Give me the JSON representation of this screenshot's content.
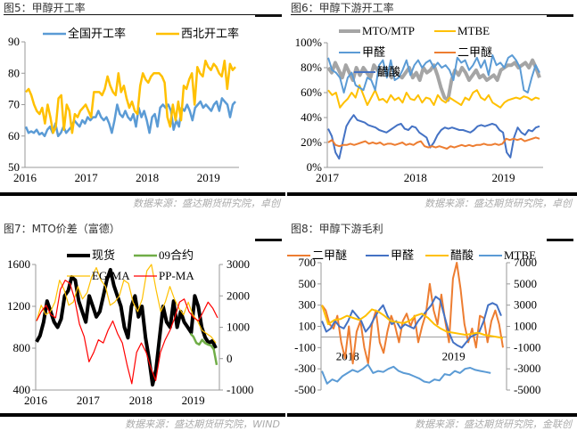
{
  "source_line_1": "数据来源：盛达期货研究院，卓创",
  "source_line_2": "数据来源：盛达期货研究院，卓创",
  "source_line_3": "数据来源：盛达期货研究院，WIND",
  "source_line_4": "数据来源：盛达期货研究院，金联创",
  "chart_data": [
    {
      "id": "fig5",
      "type": "line",
      "title": "图5：甲醇开工率",
      "xlabel": "",
      "ylabel": "",
      "x_ticks": [
        "2016",
        "2017",
        "2018",
        "2019"
      ],
      "x_range": [
        2016.0,
        2019.5
      ],
      "y_ticks": [
        50,
        60,
        70,
        80,
        90
      ],
      "ylim": [
        50,
        90
      ],
      "grid": false,
      "legend": "top",
      "series": [
        {
          "name": "全国开工率",
          "color": "#5B9BD5",
          "values": [
            63,
            61,
            61.5,
            61,
            62,
            60.5,
            61,
            60,
            62,
            63,
            61,
            64,
            60,
            61,
            63,
            61,
            62,
            63,
            65,
            64,
            63,
            65,
            64,
            66,
            65,
            66,
            66,
            68,
            66,
            65,
            66,
            64,
            61,
            65,
            70,
            67,
            66,
            68,
            66,
            65,
            67,
            63,
            69,
            66,
            68,
            65,
            61,
            66,
            67,
            63,
            69,
            70,
            69,
            70,
            68,
            62,
            65,
            63,
            69,
            68,
            70,
            68,
            65,
            69,
            70,
            71,
            69,
            70,
            69,
            68,
            70,
            71,
            68,
            72,
            71,
            70,
            66,
            70,
            71
          ]
        },
        {
          "name": "西北开工率",
          "color": "#FFC000",
          "values": [
            74,
            75,
            73,
            70,
            68,
            67,
            69,
            64,
            70,
            66,
            61,
            63,
            72,
            73,
            62,
            70,
            68,
            61,
            67,
            66,
            68,
            69,
            70,
            68,
            66,
            74,
            74,
            74,
            73,
            75,
            79,
            76,
            74,
            73,
            80,
            74,
            76,
            72,
            69,
            71,
            68,
            67,
            76,
            80,
            78,
            77,
            79,
            80,
            80,
            80,
            79,
            77,
            66,
            63,
            70,
            65,
            71,
            65,
            76,
            75,
            78,
            80,
            70,
            82,
            80,
            79,
            84,
            82,
            81,
            83,
            82,
            80,
            79,
            84,
            75,
            83,
            81,
            82
          ]
        }
      ]
    },
    {
      "id": "fig6",
      "type": "line",
      "title": "图6：甲醇下游开工率",
      "xlabel": "",
      "ylabel": "",
      "x_ticks": [
        "2017",
        "2018",
        "2019"
      ],
      "x_range": [
        2017.0,
        2019.45
      ],
      "y_ticks": [
        "0%",
        "20%",
        "40%",
        "60%",
        "80%",
        "100%"
      ],
      "ylim": [
        0,
        100
      ],
      "grid": false,
      "legend": "top",
      "series": [
        {
          "name": "MTO/MTP",
          "color": "#A5A5A5",
          "values": [
            80,
            76,
            84,
            78,
            72,
            82,
            76,
            70,
            80,
            74,
            80,
            76,
            72,
            82,
            78,
            74,
            80,
            76,
            72,
            78,
            74,
            72,
            76,
            80,
            72,
            76,
            70,
            80,
            76,
            78,
            82,
            74,
            64,
            56,
            54,
            70,
            78,
            74,
            80,
            76,
            70,
            74,
            78,
            72,
            74,
            70,
            72,
            74,
            70,
            78,
            80,
            82,
            82,
            84,
            80,
            82,
            84,
            80,
            86,
            80,
            72
          ]
        },
        {
          "name": "甲醛",
          "color": "#5B9BD5",
          "values": [
            88,
            78,
            76,
            72,
            60,
            72,
            76,
            66,
            64,
            62,
            72,
            70,
            62,
            82,
            86,
            72,
            86,
            70,
            72,
            78,
            86,
            74,
            82,
            86,
            80,
            84,
            86,
            80,
            84,
            80,
            82,
            78,
            70,
            88,
            84,
            86,
            78,
            82,
            88,
            80,
            86,
            74,
            90,
            82,
            84,
            80,
            88,
            90,
            86,
            80,
            62,
            60,
            72,
            82,
            76
          ]
        },
        {
          "name": "二甲醚",
          "color": "#ED7D31",
          "values": [
            20,
            22,
            18,
            17,
            18,
            18,
            19,
            18,
            19,
            20,
            21,
            19,
            20,
            19,
            20,
            18,
            19,
            19,
            18,
            19,
            20,
            18,
            19,
            18,
            20,
            21,
            17,
            16,
            17,
            16,
            17,
            16,
            15,
            17,
            16,
            17,
            18,
            17,
            18,
            17,
            18,
            18,
            19,
            18,
            18,
            19,
            18,
            19,
            23,
            22,
            23,
            22,
            23,
            21,
            22,
            23,
            24,
            23
          ]
        },
        {
          "name": "MTBE",
          "color": "#FFC000",
          "values": [
            62,
            58,
            60,
            48,
            52,
            55,
            60,
            56,
            66,
            58,
            50,
            56,
            62,
            54,
            55,
            52,
            58,
            54,
            56,
            52,
            60,
            55,
            54,
            58,
            52,
            56,
            55,
            50,
            58,
            54,
            52,
            56,
            54,
            52,
            50,
            56,
            54,
            60,
            62,
            56,
            54,
            58,
            52,
            50,
            48,
            52,
            54,
            55,
            56,
            55,
            57,
            56,
            54,
            56,
            55
          ]
        },
        {
          "name": "醋酸",
          "color": "#4472C4",
          "values": [
            31,
            25,
            12,
            7,
            20,
            33,
            38,
            42,
            38,
            37,
            36,
            34,
            33,
            32,
            30,
            29,
            28,
            30,
            32,
            34,
            35,
            31,
            30,
            33,
            32,
            28,
            26,
            24,
            16,
            20,
            26,
            30,
            32,
            31,
            32,
            31,
            30,
            30,
            29,
            28,
            30,
            33,
            34,
            33,
            34,
            35,
            34,
            30,
            28,
            12,
            8,
            24,
            32,
            28,
            26,
            30,
            29,
            32,
            33
          ]
        }
      ]
    },
    {
      "id": "fig7",
      "type": "line",
      "title": "图7：MTO价差（富德）",
      "xlabel": "",
      "ylabel": "",
      "x_ticks": [
        "2016",
        "2017",
        "2018",
        "2019"
      ],
      "x_range": [
        2016.0,
        2019.5
      ],
      "y_ticks_left": [
        400,
        800,
        1200,
        1600
      ],
      "ylim_left": [
        400,
        1600
      ],
      "y_ticks_right": [
        -1000,
        0,
        1000,
        2000,
        3000
      ],
      "ylim_right": [
        -1000,
        3000
      ],
      "grid": false,
      "legend": "top",
      "series": [
        {
          "name": "现货",
          "color": "#000000",
          "axis": "left",
          "values": [
            860,
            920,
            1050,
            1250,
            1150,
            1050,
            1000,
            1080,
            1300,
            1350,
            1480,
            1450,
            1250,
            1150,
            1050,
            1300,
            1200,
            1100,
            1150,
            1300,
            1450,
            1550,
            1400,
            1300,
            1200,
            1000,
            900,
            1200,
            1300,
            1100,
            1200,
            900,
            700,
            450,
            600,
            900,
            1200,
            1050,
            1000,
            1250,
            1000,
            1150,
            1050,
            1000,
            950,
            1300,
            1200,
            1000,
            900,
            850,
            870,
            800
          ]
        },
        {
          "name": "09合约",
          "color": "#70AD47",
          "axis": "right",
          "values": [
            800,
            700,
            500,
            450,
            600,
            500,
            450,
            420,
            300,
            -200
          ]
        },
        {
          "name": "EG-MA",
          "color": "#FFC000",
          "axis": "right",
          "values": [
            1200,
            1700,
            1400,
            1500,
            1800,
            2500,
            2200,
            1700,
            1800,
            2300,
            1900,
            2100,
            2600,
            2900,
            2500,
            2300,
            1700,
            1800,
            2000,
            2500,
            2400,
            1800,
            1500,
            1900,
            2800,
            3000,
            2200,
            1500,
            1800,
            2300,
            1900,
            1600,
            1400,
            1800,
            1400,
            1200,
            900,
            800,
            700,
            500
          ]
        },
        {
          "name": "PP-MA",
          "color": "#FF0000",
          "axis": "right",
          "values": [
            1200,
            1500,
            1700,
            1400,
            1300,
            2200,
            2500,
            2400,
            1900,
            1100,
            700,
            -100,
            200,
            600,
            500,
            900,
            1200,
            800,
            500,
            -200,
            -800,
            200,
            500,
            200,
            -300,
            -700,
            200,
            600,
            900,
            1300,
            1800,
            1900,
            1500,
            1300,
            1200,
            1500,
            1800,
            1600,
            1300
          ]
        }
      ]
    },
    {
      "id": "fig8",
      "type": "line",
      "title": "图8：甲醇下游毛利",
      "xlabel": "",
      "ylabel": "",
      "x_ticks": [
        "2018",
        "2019"
      ],
      "x_range": [
        2017.75,
        2019.5
      ],
      "y_ticks_left": [
        -500,
        -300,
        -100,
        100,
        300,
        500,
        700
      ],
      "ylim_left": [
        -500,
        700
      ],
      "y_ticks_right": [
        -5000,
        -3000,
        -1000,
        1000,
        3000,
        5000,
        7000
      ],
      "ylim_right": [
        -5000,
        7000
      ],
      "grid": false,
      "legend": "top",
      "series": [
        {
          "name": "二甲醚",
          "color": "#ED7D31",
          "axis": "left",
          "values": [
            300,
            250,
            120,
            80,
            200,
            -50,
            -200,
            100,
            -250,
            50,
            150,
            -100,
            -250,
            120,
            250,
            -50,
            -150,
            50,
            200,
            100,
            -50,
            150,
            220,
            100,
            200,
            -50,
            100,
            220,
            500,
            250,
            120,
            400,
            150,
            -50,
            550,
            700,
            450,
            120,
            -50,
            80,
            -100,
            200,
            180,
            -50,
            150,
            250,
            120,
            -100
          ]
        },
        {
          "name": "甲醛",
          "color": "#4472C4",
          "axis": "left",
          "values": [
            150,
            50,
            80,
            150,
            100,
            80,
            150,
            250,
            200,
            150,
            50,
            100,
            180,
            250,
            300,
            200,
            120,
            150,
            80,
            120,
            100,
            80,
            150,
            200,
            250,
            300,
            380,
            350,
            200,
            50,
            -50,
            -80,
            -100,
            -50,
            0,
            20,
            50,
            150,
            300,
            320,
            300,
            200
          ]
        },
        {
          "name": "醋酸",
          "color": "#FFC000",
          "axis": "left",
          "values": [
            300,
            120,
            160,
            170,
            200,
            180,
            160,
            200,
            260,
            240,
            200,
            150,
            140,
            130,
            150,
            200,
            220,
            180,
            120,
            80,
            50,
            40,
            30,
            20,
            30,
            40,
            20,
            10,
            0,
            -10
          ]
        },
        {
          "name": "MTBE",
          "color": "#5B9BD5",
          "axis": "right",
          "values": [
            -3200,
            -4400,
            -4000,
            -4200,
            -3700,
            -3400,
            -3100,
            -3300,
            -3000,
            -2600,
            -3400,
            -3200,
            -3300,
            -3000,
            -2800,
            -3200,
            -3400,
            -3500,
            -3700,
            -3900,
            -4200,
            -4300,
            -4000,
            -4100,
            -3500,
            -3600,
            -3200,
            -3400,
            -3000,
            -2900,
            -3100,
            -3200,
            -3300,
            -3400
          ]
        }
      ]
    }
  ]
}
